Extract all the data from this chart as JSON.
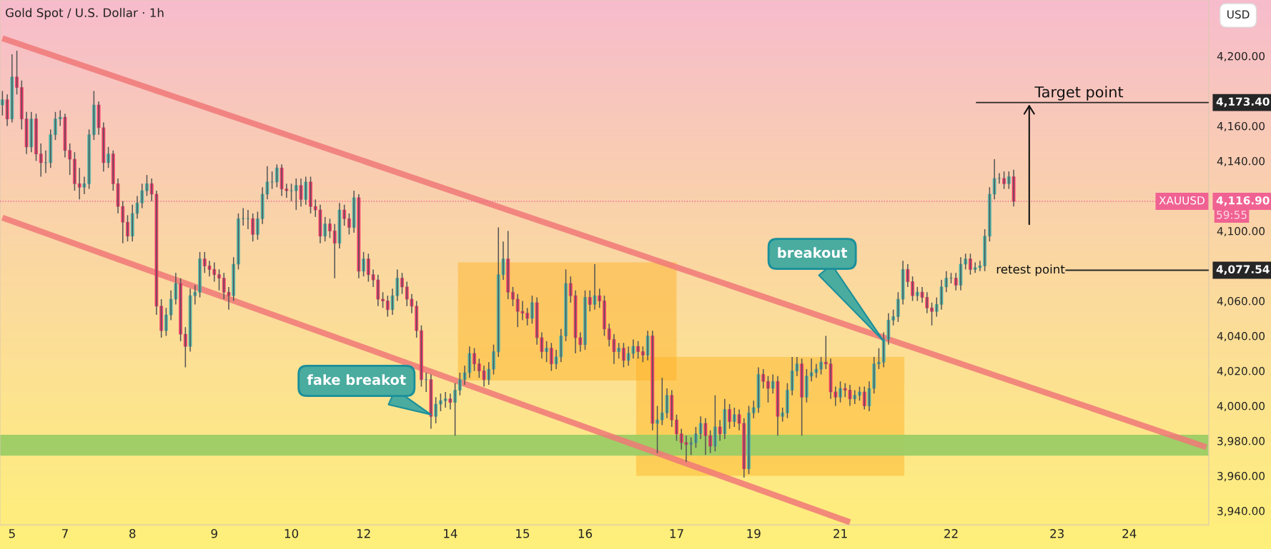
{
  "chart_data": {
    "type": "candlestick",
    "title": "Gold Spot / U.S. Dollar · 1h",
    "categories": [
      null,
      null,
      "5",
      null,
      null,
      null,
      null,
      null,
      null,
      null,
      null,
      null,
      null,
      "7",
      null,
      null,
      null,
      null,
      null,
      null,
      null,
      null,
      null,
      null,
      null,
      null,
      null,
      "8",
      null,
      null,
      null,
      null,
      null,
      null,
      null,
      null,
      null,
      null,
      null,
      null,
      null,
      null,
      null,
      null,
      "9",
      null,
      null,
      null,
      null,
      null,
      null,
      null,
      null,
      null,
      null,
      null,
      null,
      null,
      null,
      null,
      "10",
      null,
      null,
      null,
      null,
      null,
      null,
      null,
      null,
      null,
      null,
      null,
      null,
      null,
      null,
      "12",
      null,
      null,
      null,
      null,
      null,
      null,
      null,
      null,
      null,
      null,
      null,
      null,
      null,
      null,
      null,
      null,
      null,
      "14",
      null,
      null,
      null,
      null,
      null,
      null,
      null,
      null,
      null,
      null,
      null,
      null,
      null,
      null,
      "15",
      null,
      null,
      null,
      null,
      null,
      null,
      null,
      null,
      null,
      null,
      null,
      null,
      "16",
      null,
      null,
      null,
      null,
      null,
      null,
      null,
      null,
      null,
      null,
      null,
      null,
      null,
      null,
      null,
      null,
      null,
      null,
      "17",
      null,
      null,
      null,
      null,
      null,
      null,
      null,
      null,
      null,
      null,
      null,
      null,
      null,
      null,
      null,
      "19",
      null,
      null,
      null,
      null,
      null,
      null,
      null,
      null,
      null,
      null,
      null,
      null,
      null,
      null,
      null,
      null,
      null,
      "21",
      null,
      null,
      null,
      null,
      null,
      null,
      null,
      null,
      null,
      null,
      null,
      null,
      null,
      null,
      null,
      null,
      null,
      null,
      null,
      null,
      null,
      null,
      "22",
      null,
      null,
      null,
      null,
      null,
      null,
      null,
      null,
      null,
      null,
      null,
      null,
      null,
      null,
      null,
      null,
      null,
      null,
      null,
      null,
      null,
      "23",
      null,
      null,
      null,
      null,
      null,
      null,
      null,
      null,
      null,
      null,
      null,
      null,
      null,
      null,
      "24",
      null,
      null,
      null,
      null,
      null,
      null,
      null,
      null,
      null,
      null,
      null,
      null,
      null,
      null,
      null,
      null
    ],
    "ohlc": [
      [
        4172,
        4180,
        4166,
        4175
      ],
      [
        4175,
        4178,
        4160,
        4164
      ],
      [
        4164,
        4201,
        4162,
        4188
      ],
      [
        4188,
        4203,
        4178,
        4182
      ],
      [
        4182,
        4186,
        4158,
        4164
      ],
      [
        4164,
        4168,
        4144,
        4148
      ],
      [
        4148,
        4168,
        4145,
        4164
      ],
      [
        4164,
        4167,
        4140,
        4144
      ],
      [
        4144,
        4150,
        4131,
        4139
      ],
      [
        4139,
        4146,
        4133,
        4139
      ],
      [
        4139,
        4158,
        4136,
        4155
      ],
      [
        4155,
        4168,
        4152,
        4164
      ],
      [
        4164,
        4169,
        4160,
        4165
      ],
      [
        4165,
        4167,
        4142,
        4146
      ],
      [
        4146,
        4150,
        4132,
        4141
      ],
      [
        4141,
        4145,
        4123,
        4127
      ],
      [
        4127,
        4136,
        4118,
        4125
      ],
      [
        4125,
        4131,
        4121,
        4127
      ],
      [
        4127,
        4158,
        4124,
        4155
      ],
      [
        4155,
        4180,
        4152,
        4172
      ],
      [
        4172,
        4174,
        4155,
        4159
      ],
      [
        4159,
        4162,
        4134,
        4139
      ],
      [
        4139,
        4148,
        4136,
        4144
      ],
      [
        4144,
        4146,
        4123,
        4127
      ],
      [
        4127,
        4130,
        4110,
        4114
      ],
      [
        4114,
        4117,
        4093,
        4105
      ],
      [
        4105,
        4109,
        4094,
        4097
      ],
      [
        4097,
        4115,
        4094,
        4110
      ],
      [
        4110,
        4120,
        4107,
        4116
      ],
      [
        4116,
        4127,
        4113,
        4123
      ],
      [
        4123,
        4132,
        4120,
        4127
      ],
      [
        4127,
        4130,
        4117,
        4121
      ],
      [
        4121,
        4123,
        4052,
        4057
      ],
      [
        4057,
        4061,
        4039,
        4043
      ],
      [
        4043,
        4056,
        4040,
        4052
      ],
      [
        4052,
        4066,
        4049,
        4061
      ],
      [
        4061,
        4076,
        4058,
        4070
      ],
      [
        4070,
        4073,
        4037,
        4041
      ],
      [
        4041,
        4045,
        4022,
        4034
      ],
      [
        4034,
        4067,
        4031,
        4063
      ],
      [
        4063,
        4069,
        4058,
        4065
      ],
      [
        4065,
        4088,
        4062,
        4084
      ],
      [
        4084,
        4088,
        4076,
        4080
      ],
      [
        4080,
        4083,
        4074,
        4078
      ],
      [
        4078,
        4082,
        4071,
        4075
      ],
      [
        4075,
        4078,
        4066,
        4073
      ],
      [
        4073,
        4076,
        4061,
        4065
      ],
      [
        4065,
        4068,
        4055,
        4063
      ],
      [
        4063,
        4085,
        4060,
        4081
      ],
      [
        4081,
        4110,
        4078,
        4107
      ],
      [
        4107,
        4113,
        4103,
        4107
      ],
      [
        4107,
        4112,
        4101,
        4107
      ],
      [
        4107,
        4110,
        4094,
        4098
      ],
      [
        4098,
        4111,
        4095,
        4107
      ],
      [
        4107,
        4125,
        4104,
        4121
      ],
      [
        4121,
        4137,
        4118,
        4128
      ],
      [
        4128,
        4134,
        4124,
        4128
      ],
      [
        4128,
        4138,
        4125,
        4136
      ],
      [
        4136,
        4138,
        4120,
        4124
      ],
      [
        4124,
        4127,
        4119,
        4123
      ],
      [
        4123,
        4127,
        4117,
        4123
      ],
      [
        4123,
        4130,
        4112,
        4126
      ],
      [
        4126,
        4130,
        4114,
        4118
      ],
      [
        4118,
        4131,
        4115,
        4128
      ],
      [
        4128,
        4131,
        4110,
        4114
      ],
      [
        4114,
        4118,
        4108,
        4112
      ],
      [
        4112,
        4115,
        4093,
        4097
      ],
      [
        4097,
        4108,
        4094,
        4104
      ],
      [
        4104,
        4107,
        4096,
        4100
      ],
      [
        4100,
        4104,
        4073,
        4093
      ],
      [
        4093,
        4116,
        4090,
        4112
      ],
      [
        4112,
        4115,
        4103,
        4107
      ],
      [
        4107,
        4110,
        4098,
        4102
      ],
      [
        4102,
        4123,
        4099,
        4119
      ],
      [
        4119,
        4121,
        4073,
        4077
      ],
      [
        4077,
        4088,
        4074,
        4084
      ],
      [
        4084,
        4087,
        4071,
        4075
      ],
      [
        4075,
        4078,
        4068,
        4072
      ],
      [
        4072,
        4075,
        4057,
        4061
      ],
      [
        4061,
        4065,
        4056,
        4060
      ],
      [
        4060,
        4063,
        4051,
        4055
      ],
      [
        4055,
        4067,
        4052,
        4063
      ],
      [
        4063,
        4078,
        4060,
        4073
      ],
      [
        4073,
        4076,
        4064,
        4068
      ],
      [
        4068,
        4071,
        4057,
        4061
      ],
      [
        4061,
        4064,
        4053,
        4057
      ],
      [
        4057,
        4060,
        4039,
        4043
      ],
      [
        4043,
        4046,
        4011,
        4015
      ],
      [
        4015,
        4019,
        4008,
        4015
      ],
      [
        4015,
        4018,
        3987,
        3994
      ],
      [
        3994,
        4005,
        3990,
        4001
      ],
      [
        4001,
        4007,
        3997,
        4003
      ],
      [
        4003,
        4008,
        3999,
        4004
      ],
      [
        4004,
        4007,
        3998,
        4002
      ],
      [
        4002,
        4013,
        3983,
        4009
      ],
      [
        4009,
        4019,
        4006,
        4015
      ],
      [
        4015,
        4023,
        4012,
        4019
      ],
      [
        4019,
        4034,
        4016,
        4030
      ],
      [
        4030,
        4033,
        4020,
        4024
      ],
      [
        4024,
        4027,
        4016,
        4020
      ],
      [
        4020,
        4023,
        4011,
        4015
      ],
      [
        4015,
        4025,
        4012,
        4021
      ],
      [
        4021,
        4035,
        4018,
        4031
      ],
      [
        4031,
        4102,
        4028,
        4075
      ],
      [
        4075,
        4094,
        4072,
        4084
      ],
      [
        4084,
        4100,
        4061,
        4065
      ],
      [
        4065,
        4068,
        4057,
        4061
      ],
      [
        4061,
        4064,
        4045,
        4054
      ],
      [
        4054,
        4060,
        4049,
        4053
      ],
      [
        4053,
        4056,
        4046,
        4050
      ],
      [
        4050,
        4063,
        4047,
        4059
      ],
      [
        4059,
        4062,
        4035,
        4039
      ],
      [
        4039,
        4042,
        4027,
        4031
      ],
      [
        4031,
        4037,
        4025,
        4033
      ],
      [
        4033,
        4036,
        4020,
        4024
      ],
      [
        4024,
        4032,
        4021,
        4028
      ],
      [
        4028,
        4044,
        4025,
        4040
      ],
      [
        4040,
        4078,
        4037,
        4070
      ],
      [
        4070,
        4074,
        4059,
        4063
      ],
      [
        4063,
        4066,
        4030,
        4039
      ],
      [
        4039,
        4042,
        4031,
        4035
      ],
      [
        4035,
        4066,
        4032,
        4062
      ],
      [
        4062,
        4066,
        4054,
        4058
      ],
      [
        4058,
        4081,
        4055,
        4063
      ],
      [
        4063,
        4067,
        4056,
        4060
      ],
      [
        4060,
        4063,
        4040,
        4044
      ],
      [
        4044,
        4047,
        4034,
        4038
      ],
      [
        4038,
        4041,
        4024,
        4031
      ],
      [
        4031,
        4036,
        4027,
        4033
      ],
      [
        4033,
        4036,
        4022,
        4026
      ],
      [
        4026,
        4034,
        4023,
        4030
      ],
      [
        4030,
        4038,
        4027,
        4034
      ],
      [
        4034,
        4037,
        4027,
        4031
      ],
      [
        4031,
        4034,
        4025,
        4029
      ],
      [
        4029,
        4043,
        4026,
        4040
      ],
      [
        4040,
        4043,
        3986,
        3990
      ],
      [
        3990,
        4000,
        3973,
        3992
      ],
      [
        3992,
        4016,
        3989,
        3996
      ],
      [
        3996,
        4010,
        3993,
        4006
      ],
      [
        4006,
        4009,
        3988,
        3992
      ],
      [
        3992,
        3995,
        3980,
        3984
      ],
      [
        3984,
        3987,
        3975,
        3979
      ],
      [
        3979,
        3983,
        3968,
        3978
      ],
      [
        3978,
        3982,
        3972,
        3979
      ],
      [
        3979,
        3988,
        3976,
        3984
      ],
      [
        3984,
        3994,
        3981,
        3990
      ],
      [
        3990,
        3993,
        3972,
        3983
      ],
      [
        3983,
        3986,
        3973,
        3977
      ],
      [
        3977,
        4006,
        3974,
        3988
      ],
      [
        3988,
        3992,
        3980,
        3984
      ],
      [
        3984,
        4004,
        3981,
        3998
      ],
      [
        3998,
        4001,
        3987,
        3991
      ],
      [
        3991,
        3999,
        3988,
        3995
      ],
      [
        3995,
        3998,
        3986,
        3990
      ],
      [
        3990,
        3993,
        3959,
        3964
      ],
      [
        3964,
        4000,
        3961,
        3996
      ],
      [
        3996,
        4003,
        3993,
        3999
      ],
      [
        3999,
        4022,
        3996,
        4018
      ],
      [
        4018,
        4021,
        4010,
        4014
      ],
      [
        4014,
        4017,
        4002,
        4010
      ],
      [
        4010,
        4018,
        4007,
        4014
      ],
      [
        4014,
        4017,
        3983,
        3994
      ],
      [
        3994,
        3999,
        3991,
        3996
      ],
      [
        3996,
        4013,
        3993,
        4009
      ],
      [
        4009,
        4028,
        4006,
        4020
      ],
      [
        4020,
        4028,
        4017,
        4024
      ],
      [
        4024,
        4027,
        3983,
        4005
      ],
      [
        4005,
        4021,
        4002,
        4017
      ],
      [
        4017,
        4027,
        4014,
        4019
      ],
      [
        4019,
        4024,
        4016,
        4021
      ],
      [
        4021,
        4028,
        4018,
        4025
      ],
      [
        4025,
        4040,
        4021,
        4024
      ],
      [
        4024,
        4027,
        4004,
        4008
      ],
      [
        4008,
        4011,
        4000,
        4005
      ],
      [
        4005,
        4014,
        4002,
        4010
      ],
      [
        4010,
        4013,
        4005,
        4009
      ],
      [
        4009,
        4012,
        4000,
        4004
      ],
      [
        4004,
        4009,
        4001,
        4006
      ],
      [
        4006,
        4011,
        4003,
        4008
      ],
      [
        4008,
        4011,
        3998,
        4000
      ],
      [
        4000,
        4014,
        3997,
        4010
      ],
      [
        4010,
        4028,
        4007,
        4024
      ],
      [
        4024,
        4033,
        4021,
        4025
      ],
      [
        4025,
        4042,
        4022,
        4038
      ],
      [
        4038,
        4053,
        4035,
        4049
      ],
      [
        4049,
        4055,
        4046,
        4051
      ],
      [
        4051,
        4065,
        4048,
        4061
      ],
      [
        4061,
        4083,
        4058,
        4078
      ],
      [
        4078,
        4081,
        4068,
        4071
      ],
      [
        4071,
        4074,
        4060,
        4063
      ],
      [
        4063,
        4068,
        4060,
        4065
      ],
      [
        4065,
        4068,
        4059,
        4062
      ],
      [
        4062,
        4065,
        4053,
        4056
      ],
      [
        4056,
        4059,
        4046,
        4054
      ],
      [
        4054,
        4062,
        4051,
        4058
      ],
      [
        4058,
        4072,
        4055,
        4068
      ],
      [
        4068,
        4077,
        4065,
        4073
      ],
      [
        4073,
        4076,
        4070,
        4073
      ],
      [
        4073,
        4076,
        4066,
        4069
      ],
      [
        4069,
        4085,
        4066,
        4081
      ],
      [
        4081,
        4087,
        4078,
        4084
      ],
      [
        4084,
        4087,
        4075,
        4078
      ],
      [
        4078,
        4082,
        4076,
        4079
      ],
      [
        4079,
        4083,
        4077,
        4080
      ],
      [
        4080,
        4101,
        4077,
        4097
      ],
      [
        4097,
        4125,
        4094,
        4121
      ],
      [
        4121,
        4141,
        4118,
        4130
      ],
      [
        4130,
        4133,
        4127,
        4130
      ],
      [
        4130,
        4134,
        4124,
        4127
      ],
      [
        4127,
        4134,
        4124,
        4131
      ],
      [
        4131,
        4135,
        4114,
        4116.9
      ],
      null,
      null,
      null,
      null,
      null,
      null,
      null,
      null,
      null,
      null,
      null,
      null,
      null,
      null,
      null,
      null,
      null,
      null,
      null,
      null,
      null,
      null,
      null,
      null,
      null,
      null,
      null,
      null,
      null,
      null,
      null,
      null,
      null,
      null,
      null,
      null,
      null,
      null,
      null,
      null
    ],
    "series": [
      {
        "type": "line",
        "color": "#f07878",
        "values": [
          4210.1,
          null,
          null,
          null,
          null,
          null,
          null,
          null,
          null,
          null,
          null,
          null,
          null,
          null,
          null,
          null,
          null,
          null,
          null,
          null,
          null,
          null,
          null,
          null,
          null,
          null,
          null,
          null,
          null,
          null,
          null,
          null,
          null,
          null,
          null,
          null,
          null,
          null,
          null,
          null,
          null,
          null,
          null,
          null,
          null,
          null,
          null,
          null,
          null,
          null,
          null,
          null,
          null,
          null,
          null,
          null,
          null,
          null,
          null,
          null,
          null,
          null,
          null,
          null,
          null,
          null,
          null,
          null,
          null,
          null,
          null,
          null,
          null,
          null,
          null,
          null,
          null,
          null,
          null,
          null,
          null,
          null,
          null,
          null,
          null,
          null,
          null,
          null,
          null,
          null,
          null,
          null,
          null,
          null,
          null,
          null,
          null,
          null,
          null,
          null,
          null,
          null,
          null,
          null,
          null,
          null,
          null,
          null,
          null,
          null,
          null,
          null,
          null,
          null,
          null,
          null,
          null,
          null,
          null,
          null,
          null,
          null,
          null,
          null,
          null,
          null,
          null,
          null,
          null,
          null,
          null,
          null,
          null,
          null,
          null,
          null,
          null,
          null,
          null,
          null,
          null,
          null,
          null,
          null,
          null,
          null,
          null,
          null,
          null,
          null,
          null,
          null,
          null,
          null,
          null,
          null,
          null,
          null,
          null,
          null,
          null,
          null,
          null,
          null,
          null,
          null,
          null,
          null,
          null,
          null,
          null,
          null,
          null,
          null,
          null,
          null,
          null,
          null,
          null,
          null,
          null,
          null,
          null,
          null,
          null,
          null,
          null,
          null,
          null,
          null,
          null,
          null,
          null,
          null,
          null,
          null,
          null,
          null,
          null,
          null,
          null,
          null,
          null,
          null,
          null,
          null,
          null,
          null,
          null,
          null,
          null,
          null,
          null,
          null,
          null,
          null,
          null,
          null,
          null,
          null,
          null,
          null,
          null,
          null,
          null,
          null,
          null,
          null,
          null,
          null,
          null,
          null,
          null,
          null,
          null,
          null,
          null,
          null,
          null,
          null,
          null,
          null,
          null,
          null,
          null,
          null,
          null,
          null,
          null,
          null,
          3976.4
        ]
      },
      {
        "type": "line",
        "color": "#f07878",
        "values": [
          4107.6,
          null,
          null,
          null,
          null,
          null,
          null,
          null,
          null,
          null,
          null,
          null,
          null,
          null,
          null,
          null,
          null,
          null,
          null,
          null,
          null,
          null,
          null,
          null,
          null,
          null,
          null,
          null,
          null,
          null,
          null,
          null,
          null,
          null,
          null,
          null,
          null,
          null,
          null,
          null,
          null,
          null,
          null,
          null,
          null,
          null,
          null,
          null,
          null,
          null,
          null,
          null,
          null,
          null,
          null,
          null,
          null,
          null,
          null,
          null,
          null,
          null,
          null,
          null,
          null,
          null,
          null,
          null,
          null,
          null,
          null,
          null,
          null,
          null,
          null,
          null,
          null,
          null,
          null,
          null,
          null,
          null,
          null,
          null,
          null,
          null,
          null,
          null,
          null,
          null,
          null,
          null,
          null,
          null,
          null,
          null,
          null,
          null,
          null,
          null,
          null,
          null,
          null,
          null,
          null,
          null,
          null,
          null,
          null,
          null,
          null,
          null,
          null,
          null,
          null,
          null,
          null,
          null,
          null,
          null,
          null,
          null,
          null,
          null,
          null,
          null,
          null,
          null,
          null,
          null,
          null,
          null,
          null,
          null,
          null,
          null,
          null,
          null,
          null,
          null,
          null,
          null,
          null,
          null,
          null,
          null,
          null,
          null,
          null,
          null,
          null,
          null,
          null,
          null,
          null,
          null,
          null,
          null,
          null,
          null,
          null,
          null,
          null,
          null,
          null,
          null,
          null,
          null,
          null,
          null,
          null,
          null,
          null,
          null,
          null,
          null,
          3933.5,
          null,
          null,
          null,
          null,
          null,
          null,
          null,
          null,
          null,
          null,
          null,
          null,
          null,
          null,
          null,
          null,
          null,
          null,
          null,
          null,
          null,
          null,
          null,
          null,
          null,
          null,
          null,
          null,
          null,
          null,
          null,
          null,
          null,
          null,
          null,
          null,
          null,
          null,
          null,
          null,
          null,
          null,
          null,
          null,
          null,
          null,
          null,
          null,
          null,
          null,
          null,
          null,
          null,
          null,
          null,
          null,
          null,
          null,
          null,
          null,
          null,
          null,
          null,
          null,
          null,
          null,
          null,
          null,
          null,
          null,
          null,
          null,
          null,
          null
        ]
      }
    ],
    "ylim": [
      3932,
      4232
    ],
    "yticks": [
      {
        "value": 3940,
        "label": "3,940.00"
      },
      {
        "value": 3960,
        "label": "3,960.00"
      },
      {
        "value": 3980,
        "label": "3,980.00"
      },
      {
        "value": 4000,
        "label": "4,000.00"
      },
      {
        "value": 4020,
        "label": "4,020.00"
      },
      {
        "value": 4040,
        "label": "4,040.00"
      },
      {
        "value": 4060,
        "label": "4,060.00"
      },
      {
        "value": 4100,
        "label": "4,100.00"
      },
      {
        "value": 4140,
        "label": "4,140.00"
      },
      {
        "value": 4160,
        "label": "4,160.00"
      },
      {
        "value": 4200,
        "label": "4,200.00"
      }
    ],
    "ref_lines": [
      {
        "axis": "y",
        "value": 4173.4,
        "label": "4,173.40",
        "color": "#262626",
        "line_style": "solid"
      },
      {
        "axis": "y",
        "value": 4077.54,
        "label": "4,077.54",
        "color": "#262626",
        "line_style": "solid"
      },
      {
        "axis": "y",
        "value": 4116.9,
        "label": "4,116.90",
        "color": "#f06292",
        "line_style": "dotted"
      }
    ],
    "bands": [
      {
        "axis": "y",
        "from": 3971.5,
        "to": 3983.5,
        "color": "#9ccc65"
      }
    ],
    "annotations": [
      "fake breakot",
      "breakout",
      {
        "text": "Target point",
        "y": 4173.4
      },
      "retest point",
      "XAUUSD",
      "59:55",
      "USD"
    ]
  }
}
